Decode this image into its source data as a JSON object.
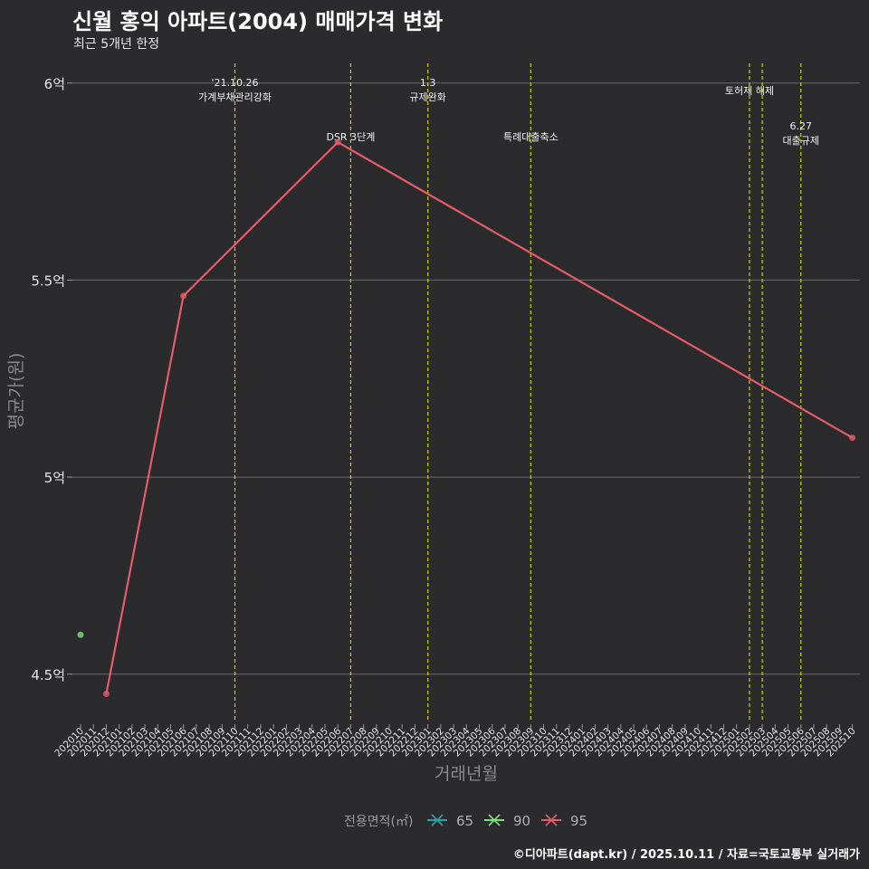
{
  "chart_data": {
    "type": "line",
    "title": "신월 홍익 아파트(2004) 매매가격 변화",
    "subtitle": "최근 5개년 한정",
    "xlabel": "거래년월",
    "ylabel": "평균가(원)",
    "ylim": [
      4.38,
      6.05
    ],
    "yticks": [
      {
        "value": 4.5,
        "label": "4.5억"
      },
      {
        "value": 5.0,
        "label": "5억"
      },
      {
        "value": 5.5,
        "label": "5.5억"
      },
      {
        "value": 6.0,
        "label": "6억"
      }
    ],
    "categories": [
      "202010",
      "202011",
      "202012",
      "202101",
      "202102",
      "202103",
      "202104",
      "202105",
      "202106",
      "202107",
      "202108",
      "202109",
      "202110",
      "202111",
      "202112",
      "202201",
      "202202",
      "202203",
      "202204",
      "202205",
      "202206",
      "202207",
      "202208",
      "202209",
      "202210",
      "202211",
      "202212",
      "202301",
      "202302",
      "202303",
      "202304",
      "202305",
      "202306",
      "202307",
      "202308",
      "202309",
      "202310",
      "202311",
      "202312",
      "202401",
      "202402",
      "202403",
      "202404",
      "202405",
      "202406",
      "202407",
      "202408",
      "202409",
      "202410",
      "202411",
      "202412",
      "202501",
      "202502",
      "202503",
      "202504",
      "202505",
      "202506",
      "202507",
      "202508",
      "202509",
      "202510"
    ],
    "legend_title": "전용면적(㎡)",
    "series": [
      {
        "name": "65",
        "color": "#2aa6a6",
        "points": []
      },
      {
        "name": "90",
        "color": "#7ee07a",
        "points": [
          {
            "x": "202010",
            "y": 4.6
          }
        ]
      },
      {
        "name": "95",
        "color": "#e55c68",
        "points": [
          {
            "x": "202012",
            "y": 4.45
          },
          {
            "x": "202106",
            "y": 5.46
          },
          {
            "x": "202206",
            "y": 5.85
          },
          {
            "x": "202510",
            "y": 5.1
          }
        ]
      }
    ],
    "events": [
      {
        "x": "202110",
        "labels": [
          "'21.10.26",
          "가계부채관리강화"
        ],
        "row": 1
      },
      {
        "x": "202207",
        "labels": [
          "DSR 3단계"
        ],
        "row": 2
      },
      {
        "x": "202301",
        "labels": [
          "1.3",
          "규제완화"
        ],
        "row": 1
      },
      {
        "x": "202309",
        "labels": [
          "특례대출축소"
        ],
        "row": 2
      },
      {
        "x": "202502",
        "labels": [
          "토허제 해제"
        ],
        "row": 1
      },
      {
        "x": "202503",
        "labels": [],
        "row": 1
      },
      {
        "x": "202506",
        "labels": [
          "6.27",
          "대출규제"
        ],
        "row": 2
      }
    ],
    "caption": "©디아파트(dapt.kr) / 2025.10.11 / 자료=국토교통부 실거래가"
  }
}
